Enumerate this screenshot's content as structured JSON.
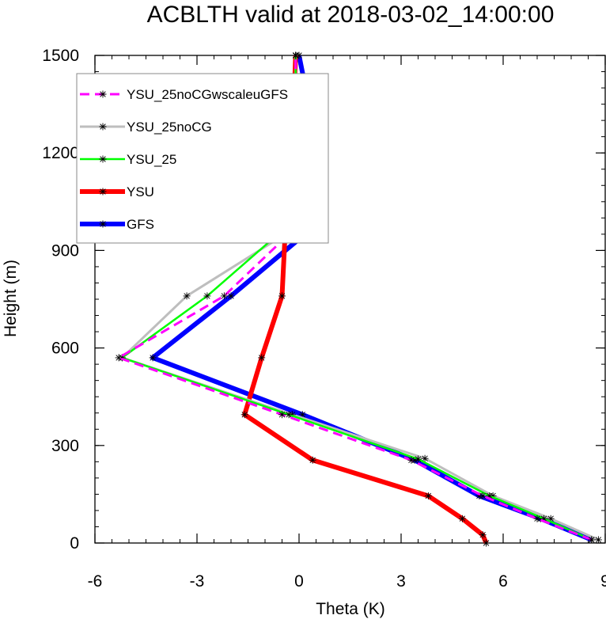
{
  "chart_data": {
    "type": "line",
    "title": "ACBLTH valid at 2018-03-02_14:00:00",
    "xlabel": "Theta (K)",
    "ylabel": "Height (m)",
    "xlim": [
      -6,
      9
    ],
    "ylim": [
      0,
      1500
    ],
    "xticks": [
      -6,
      -3,
      0,
      3,
      6,
      9
    ],
    "yticks": [
      0,
      300,
      600,
      900,
      1200,
      1500
    ],
    "xtick_labels": [
      "-6",
      "-3",
      "0",
      "3",
      "6",
      "9"
    ],
    "ytick_labels": [
      "0",
      "300",
      "600",
      "900",
      "1200",
      "1500"
    ],
    "grid": false,
    "legend_position": "top-left",
    "series": [
      {
        "name": "YSU_25noCGwscaleuGFS",
        "color": "#ff00ff",
        "dashed": true,
        "x": [
          8.6,
          7.0,
          5.4,
          3.3,
          -0.5,
          -5.3,
          -2.2,
          -0.1,
          -0.2,
          -0.1,
          -0.1
        ],
        "y": [
          10,
          75,
          145,
          255,
          395,
          570,
          760,
          970,
          1215,
          1395,
          1500
        ]
      },
      {
        "name": "YSU_25noCG",
        "color": "#bebebe",
        "dashed": false,
        "x": [
          8.8,
          7.4,
          5.7,
          3.7,
          -0.2,
          -5.2,
          -3.3,
          -0.1,
          -0.3,
          -0.1,
          -0.1
        ],
        "y": [
          10,
          75,
          145,
          260,
          395,
          570,
          760,
          970,
          1215,
          1395,
          1500
        ]
      },
      {
        "name": "YSU_25",
        "color": "#00ff00",
        "dashed": false,
        "x": [
          8.6,
          7.2,
          5.6,
          3.5,
          -0.3,
          -5.2,
          -2.7,
          -0.4,
          -0.2,
          -0.1,
          -0.1
        ],
        "y": [
          10,
          75,
          145,
          258,
          395,
          570,
          760,
          970,
          1215,
          1395,
          1500
        ]
      },
      {
        "name": "YSU",
        "color": "#ff0000",
        "dashed": false,
        "x": [
          5.5,
          5.4,
          4.8,
          3.8,
          0.4,
          -1.6,
          -1.1,
          -0.5,
          -0.4,
          -0.2,
          -0.1
        ],
        "y": [
          0,
          25,
          75,
          145,
          255,
          395,
          570,
          760,
          970,
          1215,
          1500
        ]
      },
      {
        "name": "GFS",
        "color": "#0000ff",
        "dashed": false,
        "x": [
          8.6,
          7.1,
          5.3,
          3.4,
          0.1,
          -4.3,
          -2.0,
          0.4,
          0.3,
          0.2,
          0.0
        ],
        "y": [
          10,
          75,
          145,
          255,
          395,
          570,
          760,
          970,
          1215,
          1395,
          1500
        ]
      }
    ]
  }
}
